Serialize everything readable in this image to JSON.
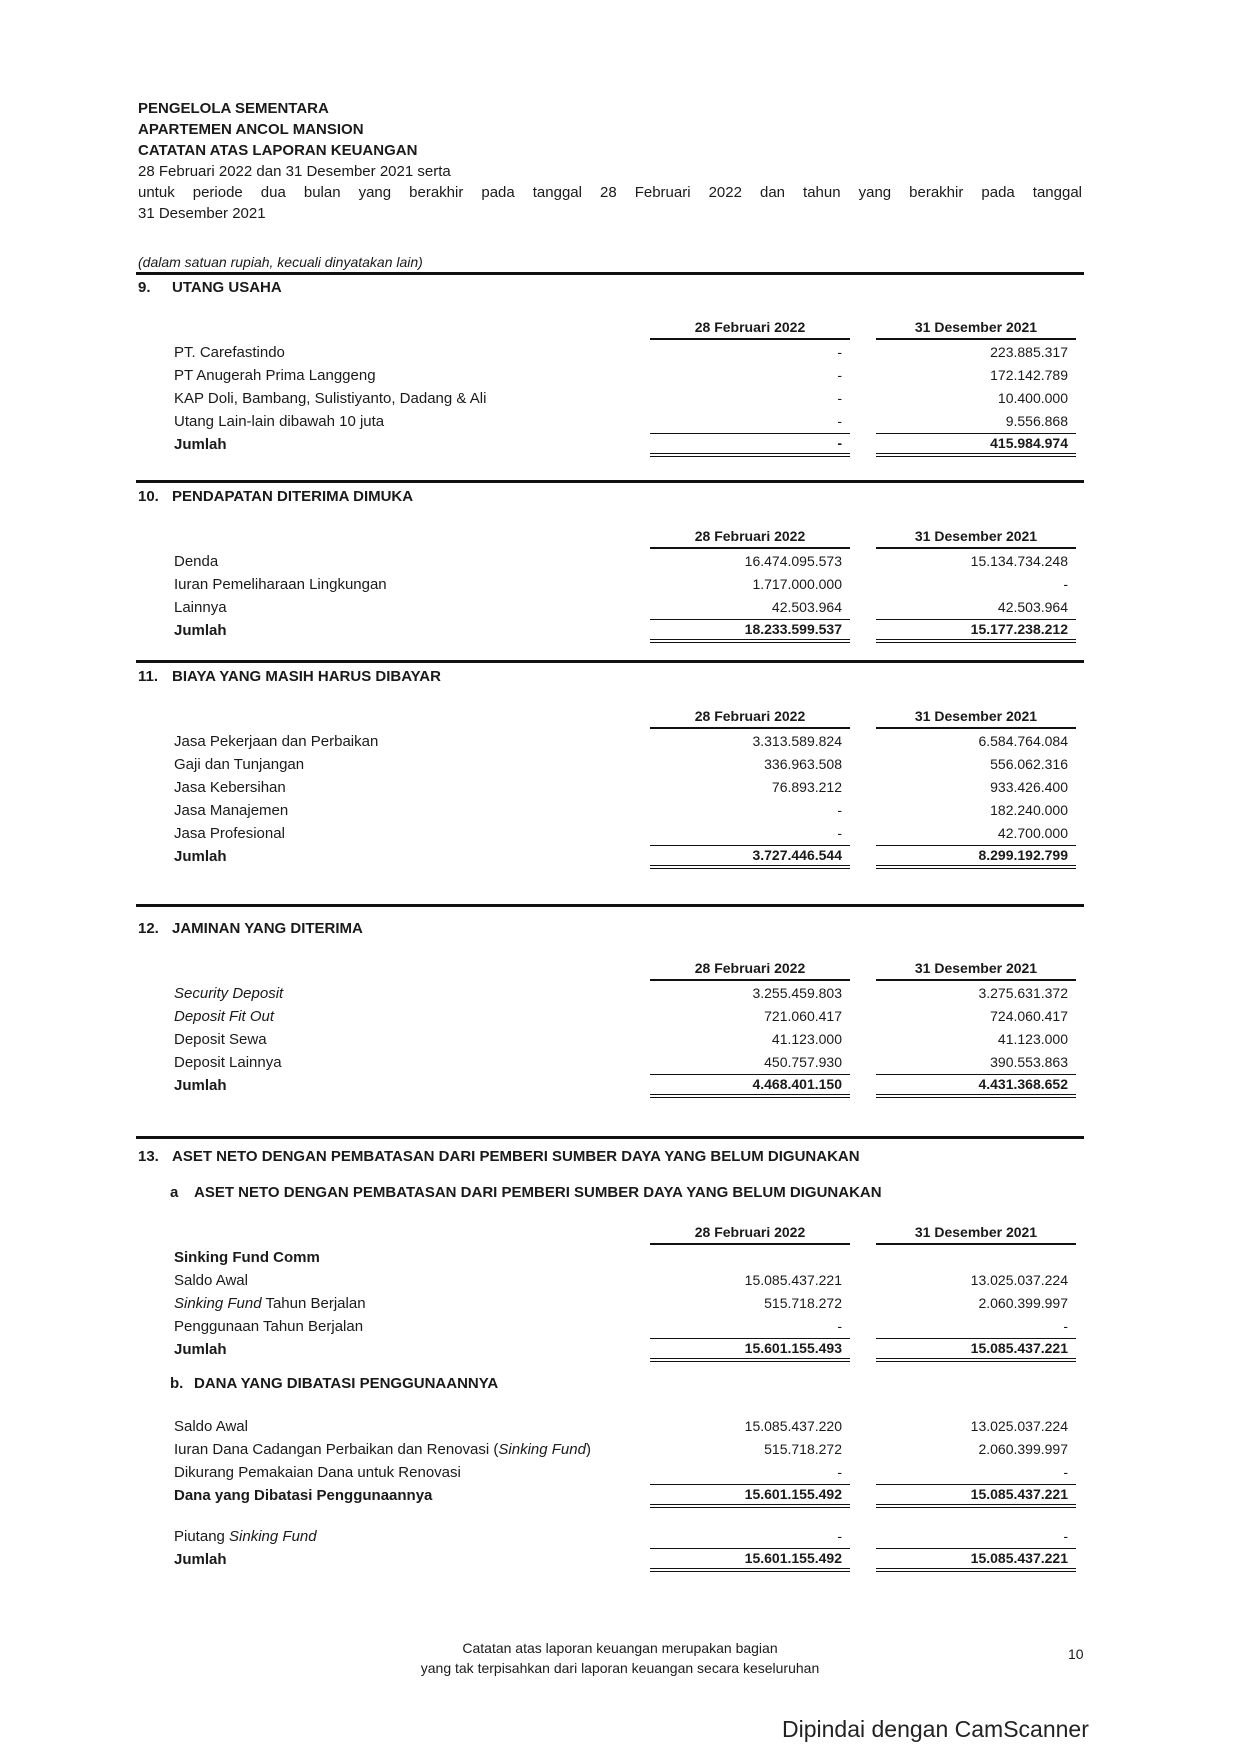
{
  "header": {
    "line1": "PENGELOLA SEMENTARA",
    "line2": "APARTEMEN ANCOL MANSION",
    "line3": "CATATAN ATAS LAPORAN KEUANGAN",
    "line4": "28 Februari 2022 dan 31 Desember 2021 serta",
    "line5": "untuk periode dua bulan yang berakhir pada tanggal 28 Februari 2022 dan tahun yang berakhir pada tanggal",
    "line6": "31 Desember 2021"
  },
  "unit_note": "(dalam satuan rupiah, kecuali dinyatakan lain)",
  "col_feb": "28 Februari 2022",
  "col_dec": "31 Desember 2021",
  "sections": [
    {
      "num": "9.",
      "title": "UTANG USAHA",
      "cols": true,
      "rows": [
        {
          "label": [
            "PT. Carefastindo"
          ],
          "feb": "-",
          "dec": "223.885.317"
        },
        {
          "label": [
            "PT Anugerah Prima Langgeng"
          ],
          "feb": "-",
          "dec": "172.142.789"
        },
        {
          "label": [
            "KAP Doli, Bambang, Sulistiyanto, Dadang & Ali"
          ],
          "feb": "-",
          "dec": "10.400.000"
        },
        {
          "label": [
            "Utang Lain-lain dibawah 10 juta"
          ],
          "feb": "-",
          "dec": "9.556.868"
        },
        {
          "label": [
            "Jumlah"
          ],
          "feb": "-",
          "dec": "415.984.974",
          "total": true
        }
      ]
    },
    {
      "num": "10.",
      "title": "PENDAPATAN DITERIMA DIMUKA",
      "cols": true,
      "rows": [
        {
          "label": [
            "Denda"
          ],
          "feb": "16.474.095.573",
          "dec": "15.134.734.248"
        },
        {
          "label": [
            "Iuran Pemeliharaan Lingkungan"
          ],
          "feb": "1.717.000.000",
          "dec": "-"
        },
        {
          "label": [
            "Lainnya"
          ],
          "feb": "42.503.964",
          "dec": "42.503.964"
        },
        {
          "label": [
            "Jumlah"
          ],
          "feb": "18.233.599.537",
          "dec": "15.177.238.212",
          "total": true
        }
      ]
    },
    {
      "num": "11.",
      "title": "BIAYA YANG MASIH HARUS DIBAYAR",
      "cols": true,
      "rows": [
        {
          "label": [
            "Jasa Pekerjaan dan Perbaikan"
          ],
          "feb": "3.313.589.824",
          "dec": "6.584.764.084"
        },
        {
          "label": [
            "Gaji dan Tunjangan"
          ],
          "feb": "336.963.508",
          "dec": "556.062.316"
        },
        {
          "label": [
            "Jasa Kebersihan"
          ],
          "feb": "76.893.212",
          "dec": "933.426.400"
        },
        {
          "label": [
            "Jasa Manajemen"
          ],
          "feb": "-",
          "dec": "182.240.000"
        },
        {
          "label": [
            "Jasa Profesional"
          ],
          "feb": "-",
          "dec": "42.700.000"
        },
        {
          "label": [
            "Jumlah"
          ],
          "feb": "3.727.446.544",
          "dec": "8.299.192.799",
          "total": true
        }
      ]
    },
    {
      "num": "12.",
      "title": "JAMINAN YANG DITERIMA",
      "cols": true,
      "rows": [
        {
          "label": [
            "",
            "Security Deposit"
          ],
          "feb": "3.255.459.803",
          "dec": "3.275.631.372"
        },
        {
          "label": [
            "",
            "Deposit Fit Out"
          ],
          "feb": "721.060.417",
          "dec": "724.060.417"
        },
        {
          "label": [
            "Deposit Sewa"
          ],
          "feb": "41.123.000",
          "dec": "41.123.000"
        },
        {
          "label": [
            "Deposit Lainnya"
          ],
          "feb": "450.757.930",
          "dec": "390.553.863"
        },
        {
          "label": [
            "Jumlah"
          ],
          "feb": "4.468.401.150",
          "dec": "4.431.368.652",
          "total": true
        }
      ]
    }
  ],
  "section13": {
    "num": "13.",
    "title": "ASET NETO DENGAN PEMBATASAN DARI PEMBERI SUMBER DAYA YANG BELUM DIGUNAKAN",
    "a": {
      "num": "a",
      "title": "ASET NETO DENGAN PEMBATASAN DARI PEMBERI SUMBER DAYA  YANG BELUM DIGUNAKAN",
      "cols": true,
      "rows": [
        {
          "label": [
            "Sinking Fund Comm"
          ],
          "feb": "",
          "dec": "",
          "bold": true
        },
        {
          "label": [
            "Saldo Awal"
          ],
          "feb": "15.085.437.221",
          "dec": "13.025.037.224"
        },
        {
          "label": [
            "",
            "Sinking Fund",
            " Tahun Berjalan"
          ],
          "feb": "515.718.272",
          "dec": "2.060.399.997"
        },
        {
          "label": [
            "Penggunaan Tahun Berjalan"
          ],
          "feb": "-",
          "dec": "-"
        },
        {
          "label": [
            "Jumlah"
          ],
          "feb": "15.601.155.493",
          "dec": "15.085.437.221",
          "total": true
        }
      ]
    },
    "b": {
      "num": "b.",
      "title": "DANA YANG DIBATASI PENGGUNAANNYA",
      "cols": false,
      "rows": [
        {
          "label": [
            "Saldo Awal"
          ],
          "feb": "15.085.437.220",
          "dec": "13.025.037.224"
        },
        {
          "label": [
            "Iuran Dana Cadangan Perbaikan dan Renovasi (",
            "Sinking Fund",
            ")"
          ],
          "feb": "515.718.272",
          "dec": "2.060.399.997"
        },
        {
          "label": [
            "Dikurang Pemakaian Dana untuk Renovasi"
          ],
          "feb": "-",
          "dec": "-"
        },
        {
          "label": [
            "Dana yang Dibatasi Penggunaannya"
          ],
          "feb": "15.601.155.492",
          "dec": "15.085.437.221",
          "total": true
        },
        {
          "gap": true
        },
        {
          "label": [
            "Piutang ",
            "Sinking Fund"
          ],
          "feb": "-",
          "dec": "-"
        },
        {
          "label": [
            "Jumlah"
          ],
          "feb": "15.601.155.492",
          "dec": "15.085.437.221",
          "total": true
        }
      ]
    }
  },
  "footer": {
    "line1": "Catatan atas laporan keuangan merupakan bagian",
    "line2": "yang tak terpisahkan dari laporan keuangan secara keseluruhan",
    "page": "10"
  },
  "watermark": "Dipindai dengan CamScanner"
}
